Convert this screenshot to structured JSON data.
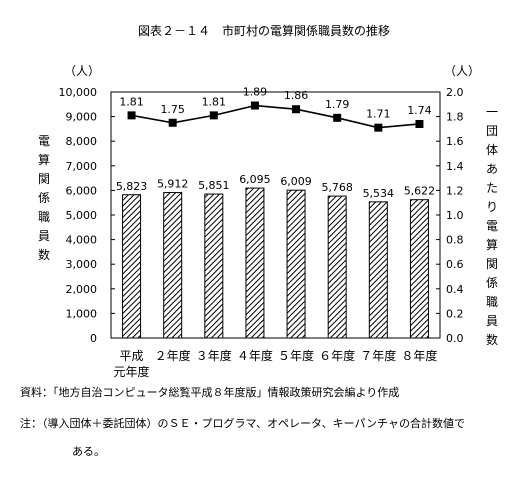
{
  "title": "図表２－１４　市町村の電算関係職員数の推移",
  "unit_left": "（人）",
  "unit_right": "（人）",
  "ylabel_left": "電算関係職員数",
  "ylabel_right": "一団体あたり電算関係職員数",
  "source": "資料：「地方自治コンピュータ総覧平成８年度版」情報政策研究会編より作成",
  "note_line1": "注：（導入団体＋委託団体）のＳＥ・プログラマ、オペレータ、キーパンチャの合計数値で",
  "note_line2": "ある。",
  "chart_data": {
    "type": "bar+line",
    "categories": [
      "平成\n元年度",
      "２年度",
      "３年度",
      "４年度",
      "５年度",
      "６年度",
      "７年度",
      "８年度"
    ],
    "series": [
      {
        "type": "bar",
        "axis": "left",
        "values": [
          5823,
          5912,
          5851,
          6095,
          6009,
          5768,
          5534,
          5622
        ],
        "labels": [
          "5,823",
          "5,912",
          "5,851",
          "6,095",
          "6,009",
          "5,768",
          "5,534",
          "5,622"
        ]
      },
      {
        "type": "line",
        "axis": "right",
        "values": [
          1.81,
          1.75,
          1.81,
          1.89,
          1.86,
          1.79,
          1.71,
          1.74
        ],
        "labels": [
          "1.81",
          "1.75",
          "1.81",
          "1.89",
          "1.86",
          "1.79",
          "1.71",
          "1.74"
        ]
      }
    ],
    "y_left": {
      "ylim": [
        0,
        10000
      ],
      "ticks": [
        "0",
        "1,000",
        "2,000",
        "3,000",
        "4,000",
        "5,000",
        "6,000",
        "7,000",
        "8,000",
        "9,000",
        "10,000"
      ]
    },
    "y_right": {
      "ylim": [
        0,
        2.0
      ],
      "ticks": [
        "0.0",
        "0.2",
        "0.4",
        "0.6",
        "0.8",
        "1.0",
        "1.2",
        "1.4",
        "1.6",
        "1.8",
        "2.0"
      ]
    },
    "bar_pattern": "diagonal-hatch",
    "line_marker": "square",
    "grid": false
  }
}
